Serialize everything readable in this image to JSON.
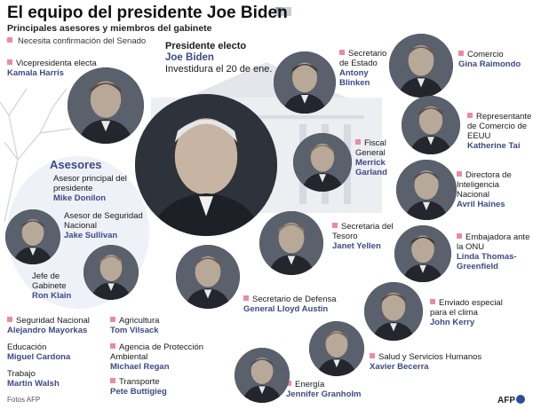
{
  "header": {
    "title": "El equipo del presidente Joe Biden",
    "subtitle": "Principales asesores y miembros del gabinete",
    "legend": "Necesita confirmación del Senado"
  },
  "president": {
    "role": "Presidente electo",
    "name": "Joe Biden",
    "note": "Investidura el 20 de ene."
  },
  "advisors": {
    "heading": "Asesores"
  },
  "people": [
    {
      "id": "harris",
      "role": "Vicepresidenta electa",
      "name": "Kamala Harris"
    },
    {
      "id": "donilon",
      "role": "Asesor principal del presidente",
      "name": "Mike Donilon"
    },
    {
      "id": "sullivan",
      "role": "Asesor de Seguridad Nacional",
      "name": "Jake Sullivan"
    },
    {
      "id": "klain",
      "role": "Jefe de Gabinete",
      "name": "Ron Klain"
    },
    {
      "id": "blinken",
      "role": "Secretario de Estado",
      "name": "Antony Blinken"
    },
    {
      "id": "raimondo",
      "role": "Comercio",
      "name": "Gina Raimondo"
    },
    {
      "id": "tai",
      "role": "Representante de Comercio de EEUU",
      "name": "Katherine Tai"
    },
    {
      "id": "garland",
      "role": "Fiscal General",
      "name": "Merrick Garland"
    },
    {
      "id": "haines",
      "role": "Directora de Inteligencia Nacional",
      "name": "Avril Haines"
    },
    {
      "id": "yellen",
      "role": "Secretaria del Tesoro",
      "name": "Janet Yellen"
    },
    {
      "id": "thomas",
      "role": "Embajadora ante la ONU",
      "name": "Linda Thomas-Greenfield"
    },
    {
      "id": "austin",
      "role": "Secretario de Defensa",
      "name": "General Lloyd Austin"
    },
    {
      "id": "kerry",
      "role": "Enviado especial para el clima",
      "name": "John Kerry"
    },
    {
      "id": "becerra",
      "role": "Salud y Servicios Humanos",
      "name": "Xavier Becerra"
    },
    {
      "id": "granholm",
      "role": "Energía",
      "name": "Jennifer Granholm"
    },
    {
      "id": "mayorkas",
      "role": "Seguridad Nacional",
      "name": "Alejandro Mayorkas"
    },
    {
      "id": "cardona",
      "role": "Educación",
      "name": "Miguel Cardona"
    },
    {
      "id": "walsh",
      "role": "Trabajo",
      "name": "Martin Walsh"
    },
    {
      "id": "vilsack",
      "role": "Agricultura",
      "name": "Tom Vilsack"
    },
    {
      "id": "regan",
      "role": "Agencia de Protección Ambiental",
      "name": "Michael Regan"
    },
    {
      "id": "buttigieg",
      "role": "Transporte",
      "name": "Pete Buttigieg"
    }
  ],
  "footer": {
    "credit": "Fotos AFP",
    "logo": "AFP"
  },
  "colors": {
    "accent": "#3c4a86",
    "confirm": "#e98aa6",
    "advisor_bg": "#eef1f7"
  }
}
